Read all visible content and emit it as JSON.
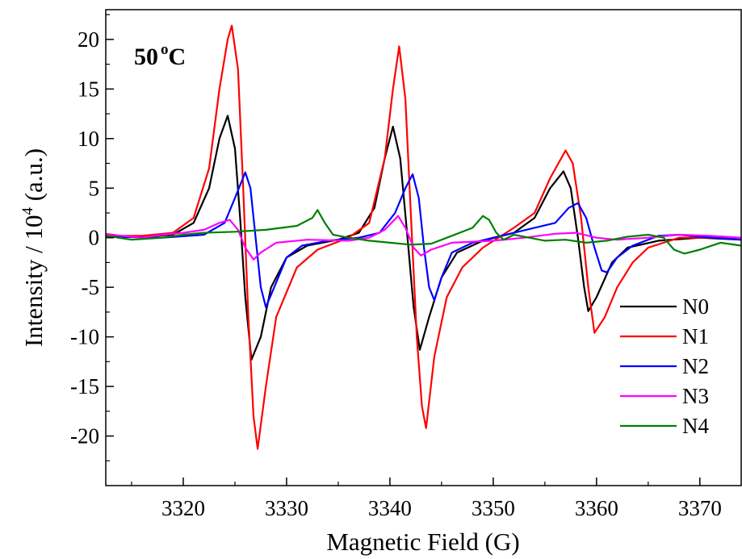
{
  "chart_data": {
    "type": "line",
    "xlabel": "Magnetic Field (G)",
    "ylabel": "Intensity / 10",
    "ylabel_sup": "4",
    "ylabel_suffix": " (a.u.)",
    "annotation": {
      "main": "50",
      "sup": "o",
      "unit": "C"
    },
    "xlim": [
      3312.5,
      3374
    ],
    "ylim": [
      -25,
      23
    ],
    "xticks": [
      3320,
      3330,
      3340,
      3350,
      3360,
      3370
    ],
    "xtick_labels": [
      "3320",
      "3330",
      "3340",
      "3350",
      "3360",
      "3370"
    ],
    "yticks": [
      20,
      15,
      10,
      5,
      0,
      -5,
      -10,
      -15,
      -20
    ],
    "ytick_labels": [
      "20",
      "15",
      "10",
      "5",
      "0",
      "-5",
      "-10",
      "-15",
      "-20"
    ],
    "legend_position": "bottom-right",
    "series": [
      {
        "name": "N0",
        "color": "#000000",
        "points": [
          [
            3312.5,
            0.2
          ],
          [
            3316,
            0.1
          ],
          [
            3319,
            0.3
          ],
          [
            3321,
            1.5
          ],
          [
            3322.5,
            5
          ],
          [
            3323.5,
            10
          ],
          [
            3324.3,
            12.3
          ],
          [
            3325,
            9
          ],
          [
            3325.5,
            2
          ],
          [
            3326,
            -6
          ],
          [
            3326.6,
            -12.3
          ],
          [
            3327.5,
            -10
          ],
          [
            3328.5,
            -5
          ],
          [
            3330,
            -2
          ],
          [
            3332,
            -0.8
          ],
          [
            3335,
            -0.2
          ],
          [
            3337,
            0.5
          ],
          [
            3338.5,
            3
          ],
          [
            3339.5,
            8
          ],
          [
            3340.3,
            11.2
          ],
          [
            3341,
            8
          ],
          [
            3341.7,
            0
          ],
          [
            3342.3,
            -7
          ],
          [
            3342.9,
            -11.3
          ],
          [
            3343.8,
            -8
          ],
          [
            3345,
            -4
          ],
          [
            3346.5,
            -1.5
          ],
          [
            3349,
            -0.3
          ],
          [
            3352,
            0.5
          ],
          [
            3354,
            2
          ],
          [
            3355.5,
            5
          ],
          [
            3356.8,
            6.7
          ],
          [
            3357.5,
            5
          ],
          [
            3358.2,
            0
          ],
          [
            3358.8,
            -5
          ],
          [
            3359.2,
            -7.4
          ],
          [
            3360,
            -6
          ],
          [
            3361.5,
            -2.5
          ],
          [
            3363,
            -1
          ],
          [
            3366,
            -0.3
          ],
          [
            3370,
            0
          ],
          [
            3374,
            -0.2
          ]
        ]
      },
      {
        "name": "N1",
        "color": "#ff0000",
        "points": [
          [
            3312.5,
            0.2
          ],
          [
            3316,
            0.2
          ],
          [
            3319,
            0.5
          ],
          [
            3321,
            2
          ],
          [
            3322.5,
            7
          ],
          [
            3323.5,
            15
          ],
          [
            3324.3,
            20
          ],
          [
            3324.7,
            21.4
          ],
          [
            3325.3,
            17
          ],
          [
            3325.8,
            5
          ],
          [
            3326.3,
            -8
          ],
          [
            3326.8,
            -18
          ],
          [
            3327.2,
            -21.3
          ],
          [
            3328,
            -15
          ],
          [
            3329,
            -8
          ],
          [
            3331,
            -3
          ],
          [
            3333,
            -1.2
          ],
          [
            3336,
            0
          ],
          [
            3338,
            1.5
          ],
          [
            3339.5,
            8
          ],
          [
            3340.3,
            15
          ],
          [
            3340.9,
            19.3
          ],
          [
            3341.5,
            14
          ],
          [
            3342,
            3
          ],
          [
            3342.6,
            -10
          ],
          [
            3343.1,
            -17
          ],
          [
            3343.5,
            -19.2
          ],
          [
            3344.3,
            -12
          ],
          [
            3345.5,
            -6
          ],
          [
            3347,
            -3
          ],
          [
            3349,
            -1
          ],
          [
            3352,
            1
          ],
          [
            3354,
            2.5
          ],
          [
            3355.5,
            6
          ],
          [
            3357,
            8.8
          ],
          [
            3357.7,
            7.5
          ],
          [
            3358.5,
            2
          ],
          [
            3359.2,
            -5
          ],
          [
            3359.8,
            -9.6
          ],
          [
            3360.8,
            -8
          ],
          [
            3362,
            -5
          ],
          [
            3363.5,
            -2.5
          ],
          [
            3365,
            -1
          ],
          [
            3368,
            0
          ],
          [
            3374,
            0
          ]
        ]
      },
      {
        "name": "N2",
        "color": "#0000ff",
        "points": [
          [
            3312.5,
            0.1
          ],
          [
            3318,
            0
          ],
          [
            3322,
            0.3
          ],
          [
            3324,
            1.5
          ],
          [
            3325,
            4
          ],
          [
            3326,
            6.6
          ],
          [
            3326.5,
            5
          ],
          [
            3327,
            0
          ],
          [
            3327.5,
            -5
          ],
          [
            3328,
            -7
          ],
          [
            3328.8,
            -5
          ],
          [
            3330,
            -2
          ],
          [
            3331.5,
            -0.8
          ],
          [
            3334,
            -0.3
          ],
          [
            3337,
            0
          ],
          [
            3339,
            0.5
          ],
          [
            3340.5,
            2.5
          ],
          [
            3341.5,
            5
          ],
          [
            3342.2,
            6.4
          ],
          [
            3342.8,
            4
          ],
          [
            3343.3,
            -1
          ],
          [
            3343.8,
            -5
          ],
          [
            3344.3,
            -6.3
          ],
          [
            3345,
            -4
          ],
          [
            3346,
            -1.5
          ],
          [
            3348,
            -0.5
          ],
          [
            3350,
            0
          ],
          [
            3352,
            0.5
          ],
          [
            3354,
            1
          ],
          [
            3356,
            1.5
          ],
          [
            3357.3,
            3
          ],
          [
            3358.2,
            3.5
          ],
          [
            3359,
            2
          ],
          [
            3359.8,
            -1
          ],
          [
            3360.5,
            -3.3
          ],
          [
            3361,
            -3.5
          ],
          [
            3362,
            -2
          ],
          [
            3363.5,
            -0.8
          ],
          [
            3366,
            0.2
          ],
          [
            3368,
            0.3
          ],
          [
            3370,
            0.1
          ],
          [
            3374,
            -0.2
          ]
        ]
      },
      {
        "name": "N3",
        "color": "#ff00ff",
        "points": [
          [
            3312.5,
            0.4
          ],
          [
            3314,
            0.2
          ],
          [
            3316,
            0
          ],
          [
            3318,
            0.3
          ],
          [
            3320,
            0.5
          ],
          [
            3322,
            0.8
          ],
          [
            3323.5,
            1.5
          ],
          [
            3324.5,
            1.8
          ],
          [
            3325.3,
            0.8
          ],
          [
            3326,
            -1
          ],
          [
            3326.8,
            -2.2
          ],
          [
            3327.5,
            -1.5
          ],
          [
            3329,
            -0.5
          ],
          [
            3332,
            -0.2
          ],
          [
            3336,
            -0.3
          ],
          [
            3338,
            0
          ],
          [
            3339.5,
            0.8
          ],
          [
            3340.8,
            2.2
          ],
          [
            3341.5,
            1
          ],
          [
            3342.3,
            -1
          ],
          [
            3343,
            -1.8
          ],
          [
            3344,
            -1.2
          ],
          [
            3346,
            -0.5
          ],
          [
            3348,
            -0.4
          ],
          [
            3350,
            -0.3
          ],
          [
            3353,
            0
          ],
          [
            3356,
            0.4
          ],
          [
            3358,
            0.5
          ],
          [
            3360,
            0
          ],
          [
            3362,
            -0.2
          ],
          [
            3365,
            0
          ],
          [
            3368,
            0.3
          ],
          [
            3371,
            0.2
          ],
          [
            3374,
            0
          ]
        ]
      },
      {
        "name": "N4",
        "color": "#008000",
        "points": [
          [
            3312.5,
            0.2
          ],
          [
            3315,
            -0.2
          ],
          [
            3318,
            0
          ],
          [
            3320,
            0.3
          ],
          [
            3322,
            0.5
          ],
          [
            3325,
            0.6
          ],
          [
            3328,
            0.8
          ],
          [
            3331,
            1.2
          ],
          [
            3332.5,
            2
          ],
          [
            3333,
            2.8
          ],
          [
            3333.7,
            1.5
          ],
          [
            3334.5,
            0.3
          ],
          [
            3336,
            0
          ],
          [
            3338,
            -0.3
          ],
          [
            3340,
            -0.5
          ],
          [
            3342,
            -0.7
          ],
          [
            3344,
            -0.6
          ],
          [
            3346,
            0.2
          ],
          [
            3348,
            1
          ],
          [
            3349,
            2.2
          ],
          [
            3349.6,
            1.8
          ],
          [
            3350.3,
            0.5
          ],
          [
            3351,
            -0.2
          ],
          [
            3352,
            0.3
          ],
          [
            3353.5,
            0
          ],
          [
            3355,
            -0.3
          ],
          [
            3357,
            -0.2
          ],
          [
            3359,
            -0.5
          ],
          [
            3361,
            -0.3
          ],
          [
            3363,
            0.1
          ],
          [
            3365,
            0.3
          ],
          [
            3366.5,
            0
          ],
          [
            3367.5,
            -1.2
          ],
          [
            3368.5,
            -1.6
          ],
          [
            3370,
            -1.2
          ],
          [
            3372,
            -0.5
          ],
          [
            3374,
            -0.8
          ]
        ]
      }
    ]
  }
}
